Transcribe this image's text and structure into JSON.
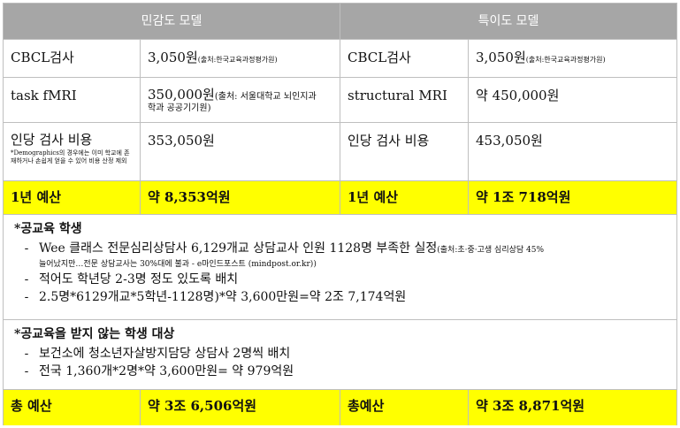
{
  "header": {
    "left": "민감도 모델",
    "right": "특이도 모델"
  },
  "row1": {
    "a": "CBCL검사",
    "b_value": "3,050원",
    "b_note": "(출처:한국교육과정평가원)",
    "c": "CBCL검사",
    "d_value": "3,050원",
    "d_note": "(출처:한국교육과정평가원)"
  },
  "row2": {
    "a": "task fMRI",
    "b_value": "350,000원",
    "b_note_1": "(출처: 서울대학교 뇌인지과",
    "b_note_2": "학과 공공기기원)",
    "c": "structural MRI",
    "d": "약 450,000원"
  },
  "row3": {
    "a": "인당 검사 비용",
    "a_note": "*Demographics의 경우에는 이미 학교에 존재하거나 손쉽게 얻을 수 있어 비용 산정 제외",
    "b": "353,050원",
    "c": "인당 검사 비용",
    "d": "453,050원"
  },
  "row4": {
    "a": "1년 예산",
    "b": "약 8,353억원",
    "c": "1년 예산",
    "d": "약 1조 718억원"
  },
  "public": {
    "title": "*공교육 학생",
    "dash": "-",
    "item1_main": "Wee 클래스 전문심리상담사 6,129개교 상담교사 인원 1128명 부족한 실정",
    "item1_src": "(출처:초·중·고생 심리상담 45%",
    "item1_cont": "늘어났지만…전문 상담교사는 30%대에 불과 - e마인드포스트 (mindpost.or.kr))",
    "item2": "적어도 학년당 2-3명 정도 있도록 배치",
    "item3": "2.5명*6129개교*5학년-1128명)*약 3,600만원=약 2조 7,174억원"
  },
  "nonpublic": {
    "title": "*공교육을 받지 않는 학생 대상",
    "dash": "-",
    "item1": "보건소에 청소년자살방지담당 상담사 2명씩 배치",
    "item2": "전국 1,360개*2명*약 3,600만원= 약 979억원"
  },
  "total": {
    "a": "총 예산",
    "b": "약 3조 6,506억원",
    "c": "총예산",
    "d": "약 3조 8,871억원"
  }
}
